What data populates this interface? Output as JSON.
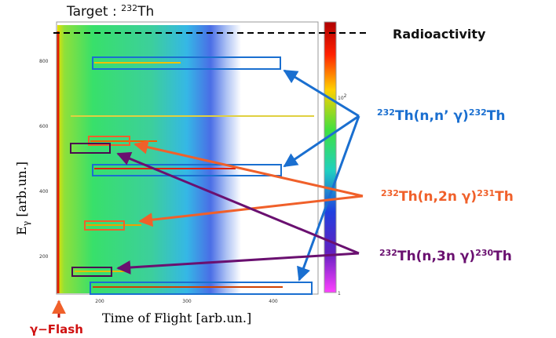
{
  "title": {
    "prefix": "Target : ",
    "mass": "232",
    "element": "Th"
  },
  "x_axis": {
    "label": "Time of Flight [arb.un.]",
    "ticks": [
      "200",
      "300",
      "400"
    ]
  },
  "y_axis": {
    "label": "E",
    "subscript": "γ",
    "unit": " [arb.un.]",
    "ticks": [
      "800",
      "600",
      "400",
      "200"
    ]
  },
  "colorbar": {
    "ticks": [
      {
        "base": "10",
        "exp": "2"
      },
      {
        "base": "1"
      }
    ]
  },
  "annotations": {
    "radioactivity": "Radioactivity",
    "flash": "γ−Flash",
    "reactions": [
      {
        "pre": "232",
        "body": "Th(n,n’ γ)",
        "post": "232",
        "end": "Th"
      },
      {
        "pre": "232",
        "body": "Th(n,2n γ)",
        "post": "231",
        "end": "Th"
      },
      {
        "pre": "232",
        "body": "Th(n,3n γ)",
        "post": "230",
        "end": "Th"
      }
    ]
  }
}
